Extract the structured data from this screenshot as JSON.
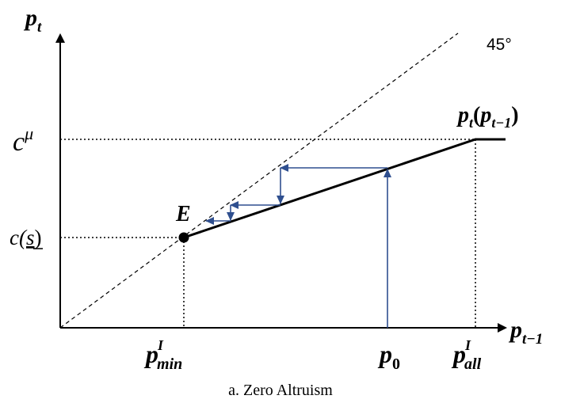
{
  "axes": {
    "y_label": {
      "base": "p",
      "sub": "t"
    },
    "x_label": {
      "base": "p",
      "sub": "t−1"
    }
  },
  "diagonal_label": "45°",
  "curve_label": {
    "base": "p",
    "sub": "t",
    "arg_base": "p",
    "arg_sub": "t−1"
  },
  "y_ticks": {
    "c_mu": {
      "base": "c",
      "sup": "μ"
    },
    "c_s": {
      "text": "c(",
      "underlined": "s",
      "close": ")"
    }
  },
  "x_ticks": {
    "p_min": {
      "base": "p",
      "sup": "I",
      "sub": "min"
    },
    "p_0": {
      "base": "p",
      "sub": "0"
    },
    "p_all": {
      "base": "p",
      "sup": "I",
      "sub": "all"
    }
  },
  "equilibrium_label": "E",
  "caption": "a. Zero Altruism",
  "colors": {
    "axis": "#000000",
    "curve": "#000000",
    "cobweb": "#2f4f8f"
  }
}
